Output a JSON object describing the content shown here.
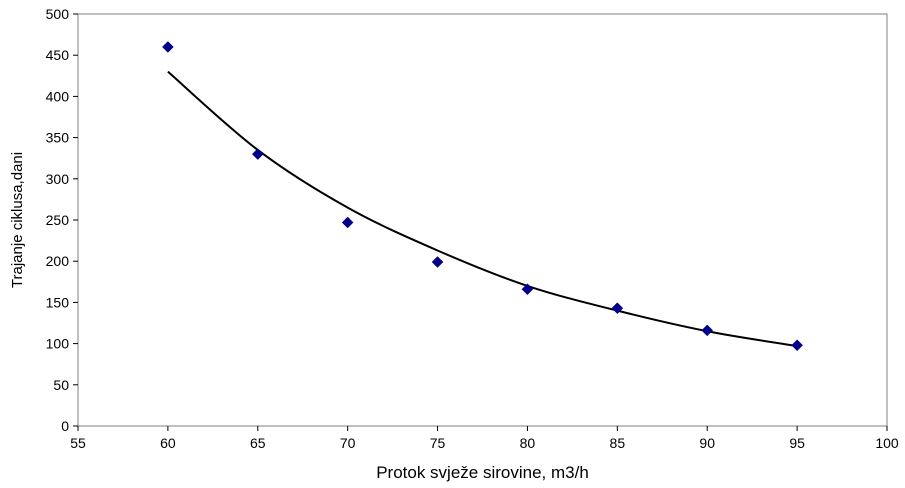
{
  "chart_data": {
    "type": "scatter",
    "title": "",
    "xlabel": "Protok svježe sirovine, m3/h",
    "ylabel": "Trajanje ciklusa,dani",
    "xlim": [
      55,
      100
    ],
    "ylim": [
      0,
      500
    ],
    "x_ticks": [
      55,
      60,
      65,
      70,
      75,
      80,
      85,
      90,
      95,
      100
    ],
    "y_ticks": [
      0,
      50,
      100,
      150,
      200,
      250,
      300,
      350,
      400,
      450,
      500
    ],
    "grid": false,
    "legend": "none",
    "series": [
      {
        "x": [
          60,
          65,
          70,
          75,
          80,
          85,
          90,
          95
        ],
        "y": [
          460,
          330,
          247,
          199,
          166,
          143,
          116,
          98
        ],
        "marker": "diamond",
        "color": "#00008B"
      }
    ],
    "trendline": {
      "type": "power",
      "x": [
        60,
        65,
        70,
        75,
        80,
        85,
        90,
        95
      ],
      "y": [
        430,
        335,
        265,
        213,
        170,
        140,
        115,
        97
      ],
      "color": "#000000"
    }
  }
}
